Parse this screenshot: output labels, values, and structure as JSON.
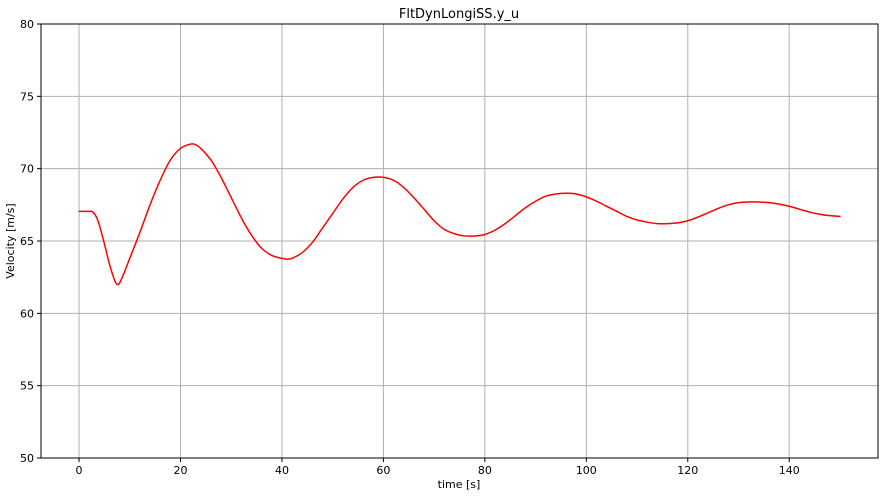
{
  "chart_data": {
    "type": "line",
    "title": "FltDynLongiSS.y_u",
    "xlabel": "time [s]",
    "ylabel": "Velocity [m/s]",
    "xlim": [
      -7.5,
      157.5
    ],
    "ylim": [
      50,
      80
    ],
    "xticks": [
      0,
      20,
      40,
      60,
      80,
      100,
      120,
      140
    ],
    "yticks": [
      50,
      55,
      60,
      65,
      70,
      75,
      80
    ],
    "grid": true,
    "series": [
      {
        "color": "#ff0000",
        "x": [
          0,
          1,
          2,
          2.5,
          3,
          3.5,
          4,
          5,
          6,
          7,
          7.5,
          8,
          9,
          10,
          12,
          14,
          16,
          18,
          20,
          22,
          23,
          24,
          26,
          28,
          30,
          32,
          34,
          36,
          38,
          40,
          41,
          42,
          44,
          46,
          48,
          50,
          52,
          54,
          56,
          58,
          60,
          62,
          64,
          66,
          68,
          70,
          72,
          74,
          76,
          78,
          80,
          82,
          84,
          86,
          88,
          90,
          92,
          94,
          96,
          98,
          100,
          102,
          104,
          106,
          108,
          110,
          112,
          114,
          116,
          118,
          120,
          122,
          124,
          126,
          128,
          130,
          132,
          134,
          136,
          138,
          140,
          142,
          144,
          146,
          148,
          150
        ],
        "y": [
          67.05,
          67.05,
          67.05,
          67.05,
          66.9,
          66.6,
          66.1,
          64.8,
          63.4,
          62.3,
          62.0,
          62.1,
          62.9,
          63.8,
          65.6,
          67.5,
          69.2,
          70.6,
          71.4,
          71.7,
          71.65,
          71.4,
          70.6,
          69.4,
          68.0,
          66.6,
          65.4,
          64.5,
          64.0,
          63.8,
          63.75,
          63.8,
          64.2,
          64.9,
          65.9,
          66.9,
          67.9,
          68.7,
          69.2,
          69.4,
          69.4,
          69.2,
          68.7,
          68.0,
          67.2,
          66.4,
          65.8,
          65.5,
          65.35,
          65.35,
          65.45,
          65.75,
          66.2,
          66.75,
          67.3,
          67.75,
          68.1,
          68.25,
          68.3,
          68.25,
          68.05,
          67.75,
          67.4,
          67.05,
          66.7,
          66.45,
          66.3,
          66.2,
          66.2,
          66.25,
          66.4,
          66.65,
          66.95,
          67.25,
          67.5,
          67.65,
          67.7,
          67.7,
          67.65,
          67.55,
          67.4,
          67.2,
          67.0,
          66.85,
          66.75,
          66.7
        ]
      }
    ]
  }
}
